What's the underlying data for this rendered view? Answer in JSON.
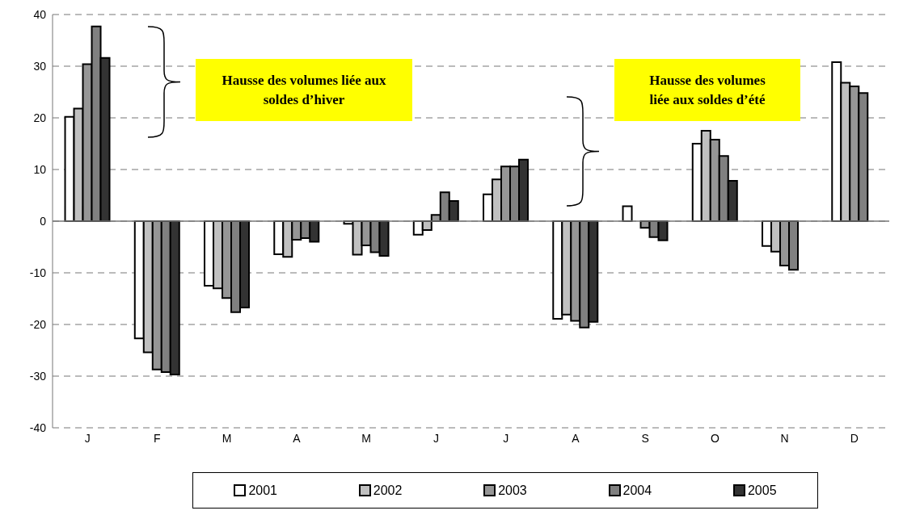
{
  "chart_data": {
    "type": "bar",
    "categories": [
      "J",
      "F",
      "M",
      "A",
      "M",
      "J",
      "J",
      "A",
      "S",
      "O",
      "N",
      "D"
    ],
    "series": [
      {
        "name": "2001",
        "color": "#ffffff",
        "values": [
          20.2,
          -22.7,
          -12.5,
          -6.4,
          -0.5,
          -2.6,
          5.2,
          -18.9,
          2.9,
          15.0,
          -4.8,
          30.8
        ]
      },
      {
        "name": "2002",
        "color": "#c0c0c0",
        "values": [
          21.8,
          -25.4,
          -13.0,
          -6.9,
          -6.5,
          -1.7,
          8.1,
          -18.1,
          null,
          17.5,
          -5.9,
          26.8
        ]
      },
      {
        "name": "2003",
        "color": "#969696",
        "values": [
          30.4,
          -28.7,
          -14.9,
          -3.6,
          -4.7,
          1.2,
          10.6,
          -19.3,
          -1.3,
          15.8,
          -8.6,
          26.1
        ]
      },
      {
        "name": "2004",
        "color": "#808080",
        "values": [
          37.7,
          -29.2,
          -17.6,
          -3.3,
          -6.0,
          5.6,
          10.6,
          -20.6,
          -3.1,
          12.6,
          -9.4,
          24.8
        ]
      },
      {
        "name": "2005",
        "color": "#333333",
        "values": [
          31.6,
          -29.7,
          -16.7,
          -4.0,
          -6.7,
          3.9,
          11.9,
          -19.5,
          -3.7,
          7.8,
          null,
          null
        ]
      }
    ],
    "ylim": [
      -40,
      40
    ],
    "yticks": [
      -40,
      -30,
      -20,
      -10,
      0,
      10,
      20,
      30,
      40
    ],
    "grid": "y",
    "legend": "bottom",
    "annotations": [
      "Hausse des volumes liée aux soldes d’hiver",
      "Hausse des volumes liée aux soldes d’été"
    ]
  }
}
